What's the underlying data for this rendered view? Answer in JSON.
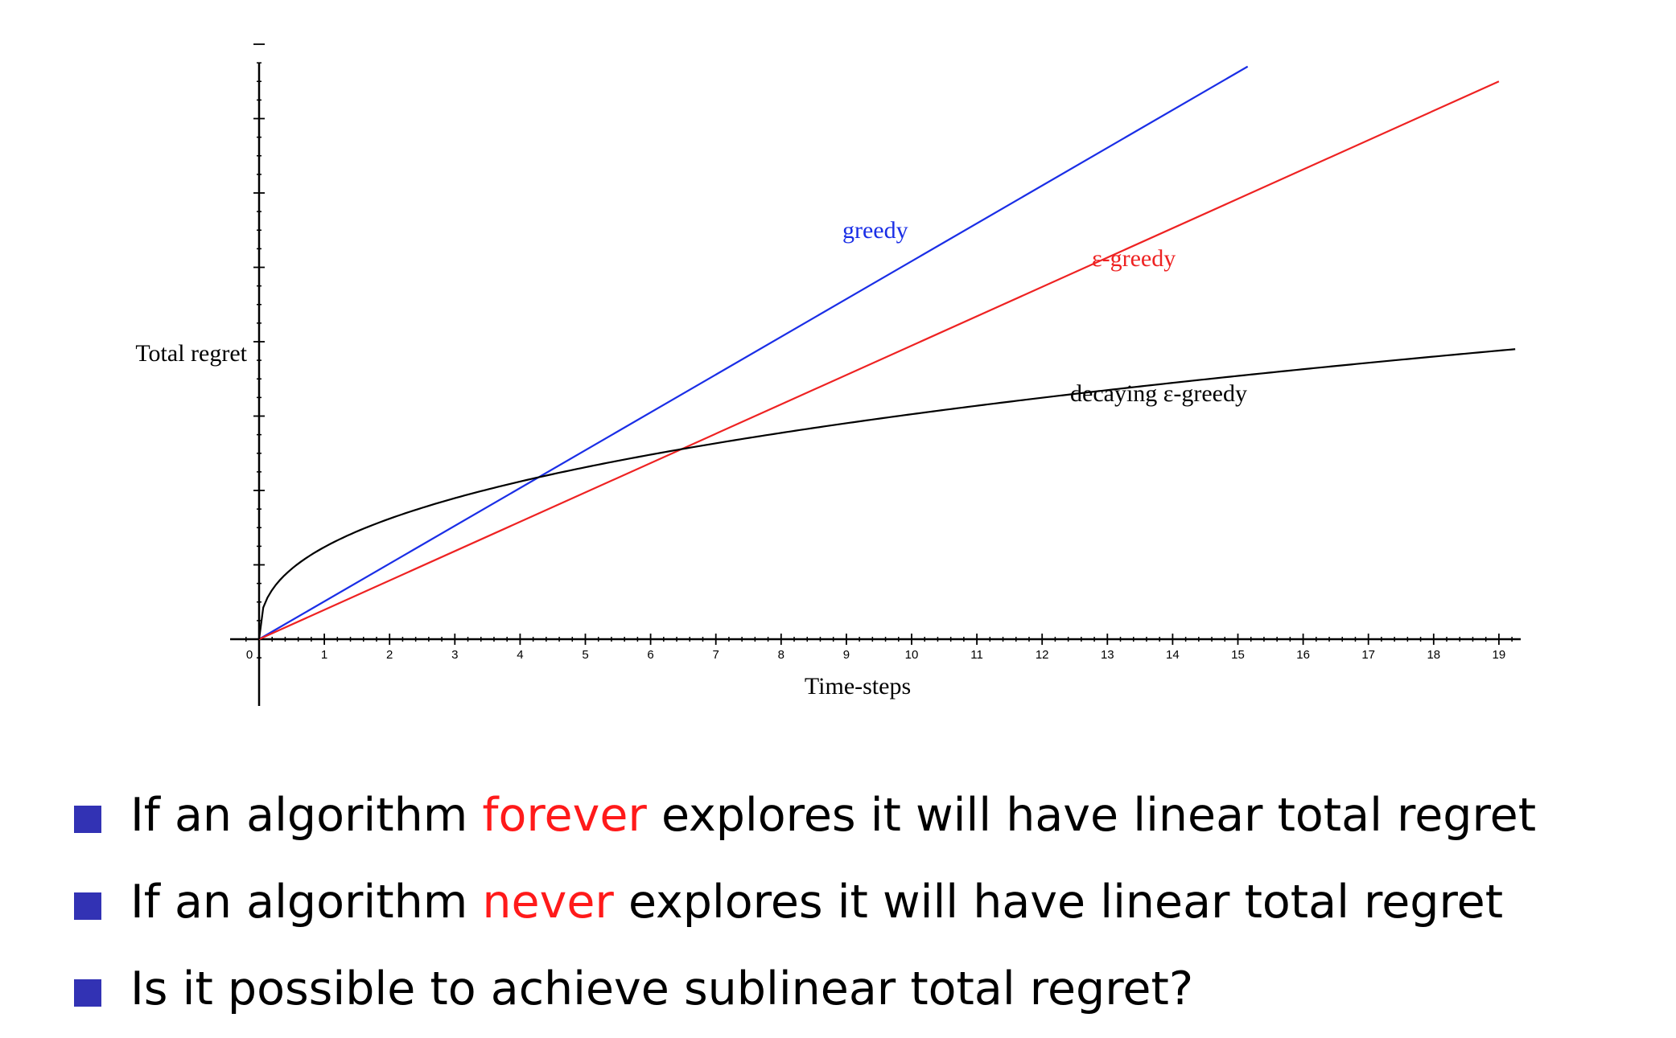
{
  "colors": {
    "greedy": "#1a2ee6",
    "epsilon_greedy": "#ee2222",
    "decaying": "#000000",
    "bullet": "#3232b4",
    "highlight": "#ff1a1a"
  },
  "chart_data": {
    "type": "line",
    "xlabel": "Time-steps",
    "ylabel": "Total regret",
    "xlim": [
      0,
      19
    ],
    "x_ticks": [
      0,
      1,
      2,
      3,
      4,
      5,
      6,
      7,
      8,
      9,
      10,
      11,
      12,
      13,
      14,
      15,
      16,
      17,
      18,
      19
    ],
    "grid": false,
    "series": [
      {
        "name": "greedy",
        "shape": "linear",
        "x": [
          0,
          15.15
        ],
        "y": [
          0,
          7.7
        ]
      },
      {
        "name": "ε-greedy",
        "shape": "linear",
        "x": [
          0,
          19
        ],
        "y": [
          0,
          7.5
        ]
      },
      {
        "name": "decaying ε-greedy",
        "shape": "concave",
        "x": [
          0,
          4.4,
          6.6,
          19.25
        ],
        "y": [
          0,
          2.2,
          2.6,
          3.9
        ]
      }
    ]
  },
  "bullets": [
    {
      "before": "If an algorithm ",
      "highlight": "forever",
      "after": " explores it will have linear total regret"
    },
    {
      "before": "If an algorithm ",
      "highlight": "never",
      "after": " explores it will have linear total regret"
    },
    {
      "before": "Is it possible to achieve sublinear total regret?",
      "highlight": "",
      "after": ""
    }
  ]
}
